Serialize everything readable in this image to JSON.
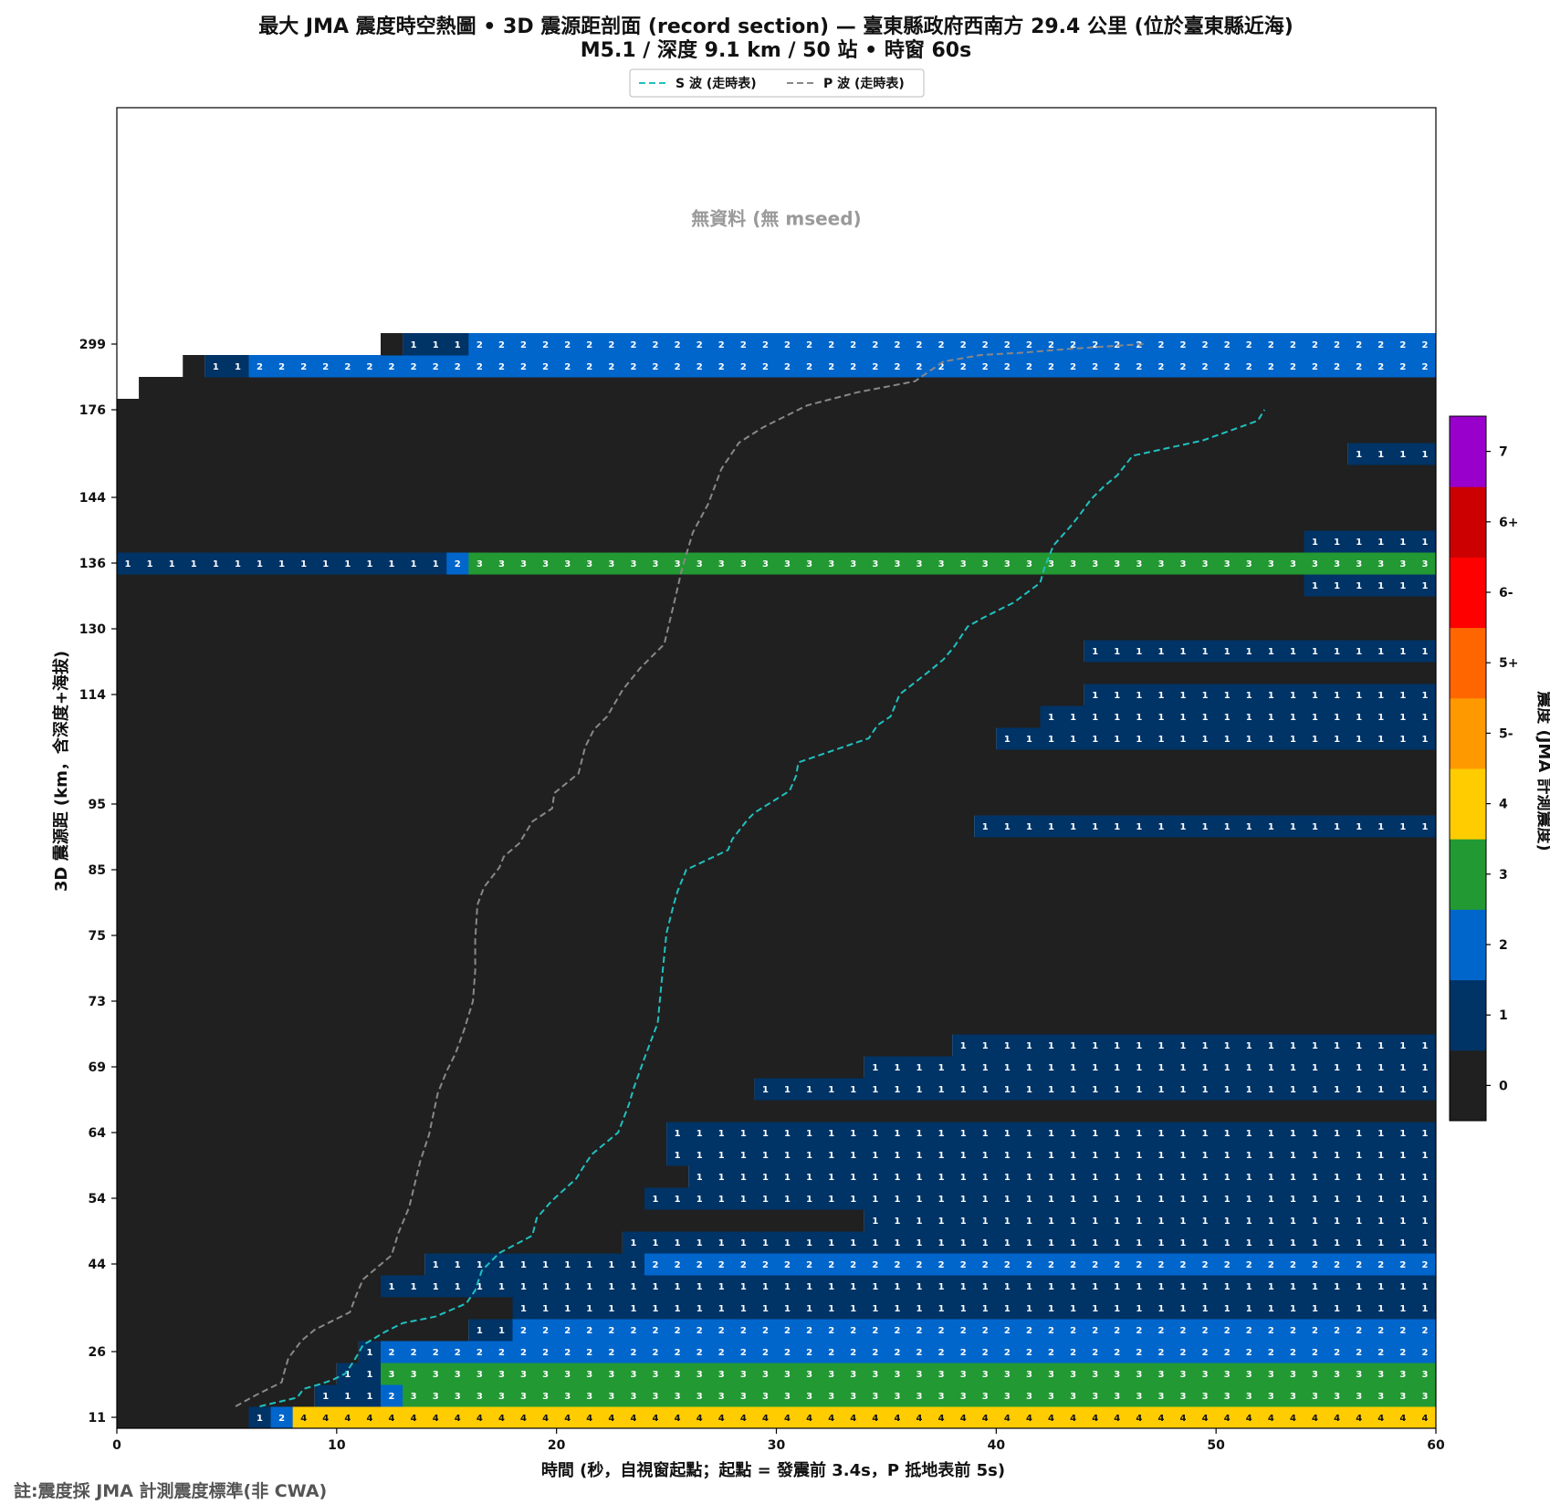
{
  "chart_data": {
    "type": "heatmap",
    "title_line1": "最大 JMA 震度時空熱圖 • 3D 震源距剖面 (record section) — 臺東縣政府西南方 29.4 公里 (位於臺東縣近海)",
    "title_line2": "M5.1 / 深度 9.1 km / 50 站 • 時窗 60s",
    "xlabel": "時間 (秒，自視窗起點；起點 = 發震前 3.4s，P 抵地表前 5s)",
    "ylabel": "3D 震源距 (km，含深度+海拔)",
    "xlim": [
      0,
      60
    ],
    "x_ticks": [
      0,
      10,
      20,
      30,
      40,
      50,
      60
    ],
    "colorbar_label": "震度 (JMA 計測震度)",
    "colorbar_levels": [
      "0",
      "1",
      "2",
      "3",
      "4",
      "5-",
      "5+",
      "6-",
      "6+",
      "7"
    ],
    "colorbar_colors": [
      "#202020",
      "#003366",
      "#0066cc",
      "#229933",
      "#ffcc00",
      "#ff9900",
      "#ff6600",
      "#ff0000",
      "#cc0000",
      "#9900cc"
    ],
    "nodata_label": "無資料 (無 mseed)",
    "legend": {
      "placement": "top-center",
      "entries": [
        {
          "label": "S 波 (走時表)",
          "color": "#20c0c0"
        },
        {
          "label": "P 波 (走時表)",
          "color": "#888888"
        }
      ]
    },
    "footnote": "註:震度採 JMA 計測震度標準(非 CWA)",
    "rows": [
      {
        "tick": "11",
        "segs": [
          [
            6,
            1
          ],
          [
            7,
            2
          ],
          [
            8,
            4
          ]
        ]
      },
      {
        "tick": "",
        "segs": [
          [
            9,
            1
          ],
          [
            12,
            2
          ],
          [
            13,
            3
          ]
        ]
      },
      {
        "tick": "",
        "segs": [
          [
            10,
            1
          ],
          [
            12,
            3
          ]
        ]
      },
      {
        "tick": "26",
        "segs": [
          [
            11,
            1
          ],
          [
            12,
            2
          ]
        ]
      },
      {
        "tick": "",
        "segs": [
          [
            16,
            1
          ],
          [
            18,
            2
          ]
        ]
      },
      {
        "tick": "",
        "segs": [
          [
            18,
            1
          ]
        ]
      },
      {
        "tick": "",
        "segs": [
          [
            12,
            1
          ]
        ]
      },
      {
        "tick": "44",
        "segs": [
          [
            14,
            1
          ],
          [
            24,
            2
          ]
        ]
      },
      {
        "tick": "",
        "segs": [
          [
            23,
            1
          ]
        ]
      },
      {
        "tick": "",
        "segs": [
          [
            34,
            1
          ]
        ]
      },
      {
        "tick": "54",
        "segs": [
          [
            24,
            1
          ]
        ]
      },
      {
        "tick": "",
        "segs": [
          [
            26,
            1
          ]
        ]
      },
      {
        "tick": "",
        "segs": [
          [
            25,
            1
          ]
        ]
      },
      {
        "tick": "64",
        "segs": [
          [
            25,
            1
          ]
        ]
      },
      {
        "tick": "",
        "segs": []
      },
      {
        "tick": "",
        "segs": [
          [
            29,
            1
          ]
        ]
      },
      {
        "tick": "69",
        "segs": [
          [
            34,
            1
          ]
        ]
      },
      {
        "tick": "",
        "segs": [
          [
            38,
            1
          ]
        ]
      },
      {
        "tick": "",
        "segs": []
      },
      {
        "tick": "73",
        "segs": []
      },
      {
        "tick": "",
        "segs": []
      },
      {
        "tick": "",
        "segs": []
      },
      {
        "tick": "75",
        "segs": []
      },
      {
        "tick": "",
        "segs": []
      },
      {
        "tick": "",
        "segs": []
      },
      {
        "tick": "85",
        "segs": []
      },
      {
        "tick": "",
        "segs": []
      },
      {
        "tick": "",
        "segs": [
          [
            39,
            1
          ]
        ]
      },
      {
        "tick": "95",
        "segs": []
      },
      {
        "tick": "",
        "segs": []
      },
      {
        "tick": "",
        "segs": []
      },
      {
        "tick": "",
        "segs": [
          [
            40,
            1
          ]
        ]
      },
      {
        "tick": "",
        "segs": [
          [
            42,
            1
          ]
        ]
      },
      {
        "tick": "114",
        "segs": [
          [
            44,
            1
          ]
        ]
      },
      {
        "tick": "",
        "segs": []
      },
      {
        "tick": "",
        "segs": [
          [
            44,
            1
          ]
        ]
      },
      {
        "tick": "130",
        "segs": []
      },
      {
        "tick": "",
        "segs": []
      },
      {
        "tick": "",
        "segs": [
          [
            54,
            1
          ]
        ]
      },
      {
        "tick": "136",
        "segs": [
          [
            0,
            1
          ],
          [
            15,
            2
          ],
          [
            16,
            3
          ]
        ]
      },
      {
        "tick": "",
        "segs": [
          [
            54,
            1
          ]
        ]
      },
      {
        "tick": "",
        "segs": []
      },
      {
        "tick": "144",
        "segs": []
      },
      {
        "tick": "",
        "segs": []
      },
      {
        "tick": "",
        "segs": [
          [
            56,
            1
          ]
        ]
      },
      {
        "tick": "",
        "segs": []
      },
      {
        "tick": "176",
        "segs": []
      },
      {
        "tick": "",
        "segs": [],
        "start": 1
      },
      {
        "tick": "",
        "segs": [
          [
            4,
            1
          ],
          [
            6,
            2
          ]
        ],
        "start": 3
      },
      {
        "tick": "299",
        "segs": [
          [
            13,
            1
          ],
          [
            16,
            2
          ]
        ],
        "start": 12
      }
    ],
    "p_wave": [
      [
        5.4,
        0.5
      ],
      [
        6.3,
        1.0
      ],
      [
        7.5,
        1.6
      ],
      [
        7.6,
        2.0
      ],
      [
        7.8,
        2.7
      ],
      [
        8.4,
        3.5
      ],
      [
        9.0,
        4.0
      ],
      [
        10.6,
        4.8
      ],
      [
        10.9,
        5.6
      ],
      [
        11.2,
        6.3
      ],
      [
        12.5,
        7.4
      ],
      [
        12.8,
        8.4
      ],
      [
        13.3,
        9.6
      ],
      [
        13.8,
        11.7
      ],
      [
        14.2,
        12.9
      ],
      [
        14.6,
        14.8
      ],
      [
        15.0,
        15.8
      ],
      [
        15.4,
        16.6
      ],
      [
        15.8,
        17.7
      ],
      [
        16.2,
        19.0
      ],
      [
        16.3,
        20.4
      ],
      [
        16.3,
        21.8
      ],
      [
        16.4,
        23.4
      ],
      [
        16.7,
        24.2
      ],
      [
        17.4,
        25.1
      ],
      [
        17.6,
        25.6
      ],
      [
        18.3,
        26.2
      ],
      [
        18.9,
        27.2
      ],
      [
        19.8,
        27.8
      ],
      [
        19.9,
        28.5
      ],
      [
        21.0,
        29.4
      ],
      [
        21.3,
        30.6
      ],
      [
        21.7,
        31.4
      ],
      [
        22.3,
        32.0
      ],
      [
        23.0,
        33.2
      ],
      [
        23.8,
        34.2
      ],
      [
        24.9,
        35.3
      ],
      [
        25.4,
        37.4
      ],
      [
        25.7,
        38.7
      ],
      [
        26.2,
        40.4
      ],
      [
        26.9,
        41.7
      ],
      [
        27.5,
        43.3
      ],
      [
        28.3,
        44.5
      ],
      [
        29.4,
        45.2
      ],
      [
        31.4,
        46.2
      ],
      [
        33.7,
        46.8
      ],
      [
        36.3,
        47.3
      ],
      [
        37.6,
        48.2
      ],
      [
        39.3,
        48.5
      ],
      [
        41.1,
        48.6
      ],
      [
        43.6,
        48.8
      ],
      [
        46.7,
        49.0
      ]
    ],
    "s_wave": [
      [
        6.5,
        0.5
      ],
      [
        8.2,
        0.9
      ],
      [
        8.5,
        1.3
      ],
      [
        9.2,
        1.5
      ],
      [
        9.8,
        1.7
      ],
      [
        10.4,
        2.0
      ],
      [
        10.8,
        2.6
      ],
      [
        11.2,
        3.3
      ],
      [
        12.2,
        3.9
      ],
      [
        13.0,
        4.3
      ],
      [
        14.5,
        4.6
      ],
      [
        15.9,
        5.2
      ],
      [
        16.3,
        5.8
      ],
      [
        16.6,
        6.7
      ],
      [
        17.4,
        7.5
      ],
      [
        18.9,
        8.3
      ],
      [
        19.1,
        9.1
      ],
      [
        19.8,
        9.9
      ],
      [
        20.9,
        10.9
      ],
      [
        21.2,
        11.4
      ],
      [
        21.6,
        12.0
      ],
      [
        22.8,
        13.0
      ],
      [
        23.3,
        14.3
      ],
      [
        23.5,
        15.0
      ],
      [
        24.0,
        16.4
      ],
      [
        24.6,
        18.0
      ],
      [
        24.8,
        20.1
      ],
      [
        25.0,
        22.1
      ],
      [
        25.3,
        23.3
      ],
      [
        25.5,
        24.0
      ],
      [
        25.9,
        25.0
      ],
      [
        27.8,
        25.9
      ],
      [
        28.0,
        26.4
      ],
      [
        28.7,
        27.3
      ],
      [
        29.0,
        27.6
      ],
      [
        30.6,
        28.6
      ],
      [
        30.9,
        29.3
      ],
      [
        31.0,
        29.9
      ],
      [
        34.2,
        31.0
      ],
      [
        34.6,
        31.6
      ],
      [
        35.2,
        32.0
      ],
      [
        35.6,
        33.0
      ],
      [
        37.0,
        34.1
      ],
      [
        37.6,
        34.6
      ],
      [
        38.1,
        35.2
      ],
      [
        38.7,
        36.1
      ],
      [
        39.4,
        36.5
      ],
      [
        40.8,
        37.2
      ],
      [
        42.0,
        38.1
      ],
      [
        42.2,
        38.8
      ],
      [
        42.6,
        39.8
      ],
      [
        43.4,
        40.7
      ],
      [
        43.8,
        41.2
      ],
      [
        44.3,
        41.9
      ],
      [
        44.9,
        42.5
      ],
      [
        45.5,
        43.0
      ],
      [
        46.2,
        43.9
      ],
      [
        49.4,
        44.6
      ],
      [
        51.9,
        45.5
      ],
      [
        52.2,
        46.0
      ]
    ]
  }
}
